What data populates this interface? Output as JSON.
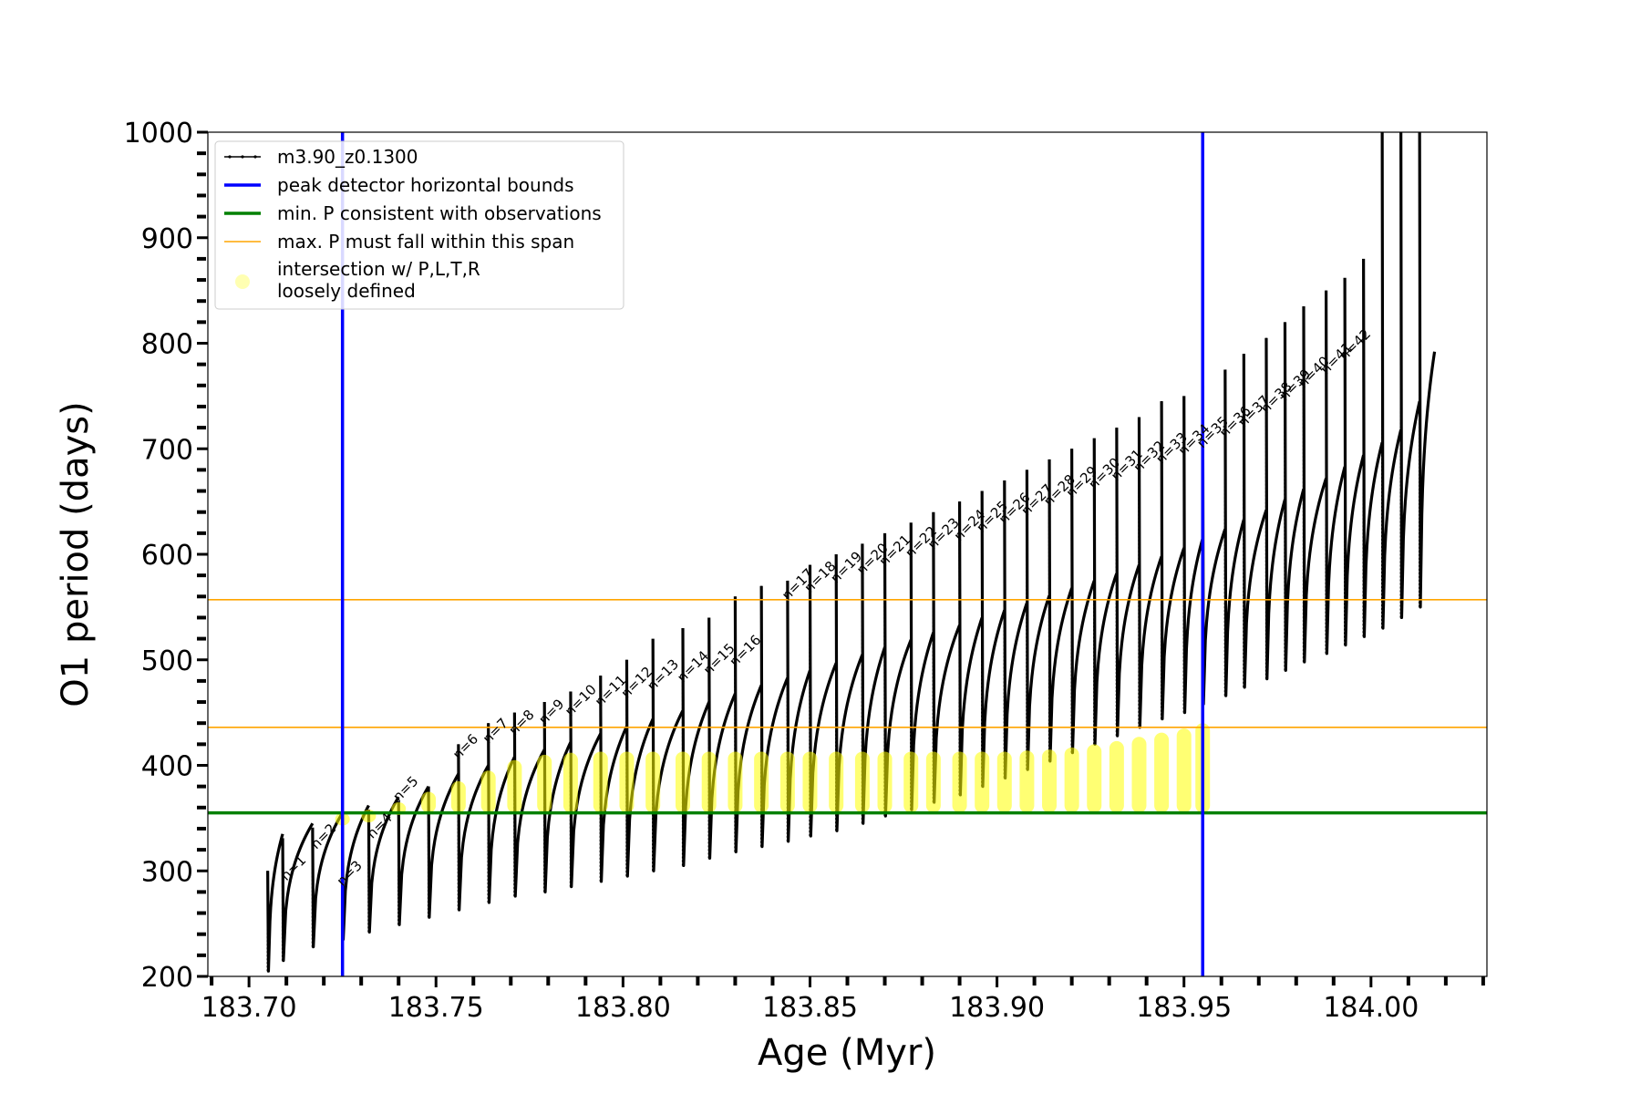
{
  "chart_data": {
    "type": "line",
    "xlabel": "Age (Myr)",
    "ylabel": "O1 period (days)",
    "xlim": [
      183.689,
      184.031
    ],
    "ylim": [
      200,
      1000
    ],
    "x_ticks": [
      "183.70",
      "183.75",
      "183.80",
      "183.85",
      "183.90",
      "183.95",
      "184.00"
    ],
    "y_ticks": [
      "200",
      "300",
      "400",
      "500",
      "600",
      "700",
      "800",
      "900",
      "1000"
    ],
    "grid": false,
    "legend_position": "top-left",
    "legend": [
      {
        "label": "m3.90_z0.1300",
        "style": "black line with small markers"
      },
      {
        "label": "peak detector horizontal bounds",
        "style": "blue line"
      },
      {
        "label": "min. P consistent with observations",
        "style": "green line"
      },
      {
        "label": "max. P must fall within this span",
        "style": "orange line"
      },
      {
        "label": "intersection w/ P,L,T,R",
        "label_line2": "loosely defined",
        "style": "yellow circle"
      }
    ],
    "colors": {
      "track": "#000000",
      "bounds": "#0000ff",
      "min_period": "#008000",
      "max_span": "#ffa500",
      "intersection": "#ffff00"
    },
    "reference_lines": {
      "peak_detector_bounds_age": [
        183.725,
        183.955
      ],
      "min_period": 355,
      "max_period_span": [
        436,
        557
      ]
    },
    "series": [
      {
        "name": "m3.90_z0.1300",
        "type": "line",
        "note": "thermal pulse cycles; peak O1 period per cycle",
        "peak_age": [
          183.709,
          183.717,
          183.725,
          183.732,
          183.74,
          183.748,
          183.756,
          183.764,
          183.771,
          183.779,
          183.786,
          183.794,
          183.801,
          183.808,
          183.816,
          183.823,
          183.83,
          183.837,
          183.844,
          183.85,
          183.857,
          183.864,
          183.87,
          183.877,
          183.883,
          183.89,
          183.896,
          183.902,
          183.908,
          183.914,
          183.92,
          183.926,
          183.932,
          183.938,
          183.944,
          183.95,
          183.955,
          183.961,
          183.966,
          183.972,
          183.977,
          183.982,
          183.988,
          183.993,
          183.998,
          184.003,
          184.008,
          184.013,
          184.017
        ],
        "peak_period": [
          335,
          345,
          355,
          362,
          370,
          380,
          392,
          400,
          408,
          415,
          422,
          430,
          437,
          444,
          452,
          460,
          468,
          476,
          483,
          490,
          497,
          505,
          512,
          519,
          526,
          533,
          540,
          547,
          554,
          561,
          568,
          575,
          582,
          590,
          598,
          606,
          615,
          624,
          633,
          642,
          652,
          662,
          672,
          683,
          694,
          706,
          718,
          745,
          792
        ],
        "trough_period": [
          205,
          215,
          228,
          235,
          242,
          249,
          256,
          263,
          270,
          276,
          280,
          285,
          290,
          295,
          300,
          305,
          312,
          318,
          323,
          328,
          333,
          338,
          345,
          352,
          358,
          365,
          372,
          380,
          388,
          396,
          404,
          412,
          420,
          428,
          436,
          444,
          450,
          458,
          466,
          474,
          482,
          490,
          498,
          506,
          514,
          522,
          530,
          540,
          550
        ],
        "spike_period": [
          300,
          305,
          305,
          320,
          340,
          350,
          380,
          420,
          440,
          450,
          460,
          470,
          485,
          500,
          520,
          530,
          540,
          560,
          570,
          575,
          590,
          600,
          610,
          620,
          630,
          640,
          650,
          660,
          670,
          680,
          690,
          700,
          710,
          720,
          730,
          745,
          750,
          760,
          775,
          790,
          805,
          820,
          835,
          850,
          862,
          880,
          1000,
          1000,
          1000
        ]
      },
      {
        "name": "intersection w/ P,L,T,R loosely defined",
        "type": "scatter",
        "points": [
          {
            "age": 183.725,
            "period": 355
          },
          {
            "age": 183.732,
            "period": 358
          },
          {
            "age": 183.74,
            "period": 365
          },
          {
            "age": 183.748,
            "period": 375
          },
          {
            "age": 183.756,
            "period": 385
          },
          {
            "age": 183.764,
            "period": 395
          },
          {
            "age": 183.771,
            "period": 405
          },
          {
            "age": 183.779,
            "period": 410
          },
          {
            "age": 183.786,
            "period": 412
          },
          {
            "age": 183.794,
            "period": 413
          },
          {
            "age": 183.801,
            "period": 413
          },
          {
            "age": 183.808,
            "period": 413
          },
          {
            "age": 183.816,
            "period": 413
          },
          {
            "age": 183.823,
            "period": 413
          },
          {
            "age": 183.83,
            "period": 413
          },
          {
            "age": 183.837,
            "period": 413
          },
          {
            "age": 183.844,
            "period": 413
          },
          {
            "age": 183.85,
            "period": 413
          },
          {
            "age": 183.857,
            "period": 413
          },
          {
            "age": 183.864,
            "period": 413
          },
          {
            "age": 183.87,
            "period": 413
          },
          {
            "age": 183.877,
            "period": 413
          },
          {
            "age": 183.883,
            "period": 413
          },
          {
            "age": 183.89,
            "period": 413
          },
          {
            "age": 183.896,
            "period": 413
          },
          {
            "age": 183.902,
            "period": 413
          },
          {
            "age": 183.908,
            "period": 414
          },
          {
            "age": 183.914,
            "period": 415
          },
          {
            "age": 183.92,
            "period": 417
          },
          {
            "age": 183.926,
            "period": 420
          },
          {
            "age": 183.932,
            "period": 423
          },
          {
            "age": 183.938,
            "period": 427
          },
          {
            "age": 183.944,
            "period": 431
          },
          {
            "age": 183.95,
            "period": 435
          },
          {
            "age": 183.955,
            "period": 440
          }
        ]
      }
    ],
    "annotations": {
      "pulse_labels": [
        "n=1",
        "n=2",
        "n=3",
        "n=4",
        "n=5",
        "n=6",
        "n=7",
        "n=8",
        "n=9",
        "n=10",
        "n=11",
        "n=12",
        "n=13",
        "n=14",
        "n=15",
        "n=16",
        "n=17",
        "n=18",
        "n=19",
        "n=20",
        "n=21",
        "n=22",
        "n=23",
        "n=24",
        "n=25",
        "n=26",
        "n=27",
        "n=28",
        "n=29",
        "n=30",
        "n=31",
        "n=32",
        "n=33",
        "n=34",
        "n=35",
        "n=36",
        "n=37",
        "n=38",
        "n=39",
        "n=40",
        "n=41",
        "n=42"
      ],
      "pulse_label_age": [
        183.71,
        183.718,
        183.725,
        183.733,
        183.74,
        183.756,
        183.764,
        183.771,
        183.779,
        183.786,
        183.794,
        183.801,
        183.808,
        183.816,
        183.823,
        183.83,
        183.844,
        183.85,
        183.857,
        183.864,
        183.87,
        183.877,
        183.883,
        183.89,
        183.896,
        183.902,
        183.908,
        183.914,
        183.92,
        183.926,
        183.932,
        183.938,
        183.944,
        183.95,
        183.955,
        183.961,
        183.966,
        183.972,
        183.977,
        183.982,
        183.988,
        183.993
      ],
      "pulse_label_period": [
        290,
        320,
        285,
        330,
        365,
        405,
        420,
        428,
        438,
        446,
        455,
        463,
        470,
        478,
        485,
        493,
        556,
        563,
        572,
        580,
        588,
        596,
        604,
        612,
        620,
        628,
        636,
        645,
        653,
        661,
        669,
        677,
        685,
        693,
        700,
        710,
        720,
        733,
        745,
        757,
        770,
        783
      ]
    }
  }
}
